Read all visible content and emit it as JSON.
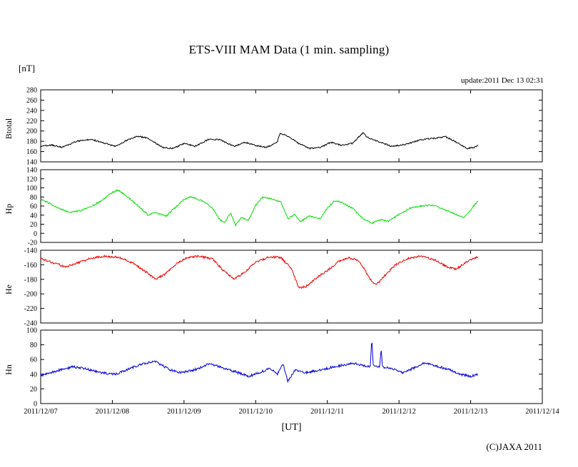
{
  "chart_data": {
    "type": "line",
    "title": "ETS-VIII MAM Data (1 min. sampling)",
    "y_unit_label": "[nT]",
    "x_unit_label": "[UT]",
    "update_text": "update:2011 Dec 13 02:31",
    "copyright": "(C)JAXA 2011",
    "x_ticks": [
      "2011/12/07",
      "2011/12/08",
      "2011/12/09",
      "2011/12/10",
      "2011/12/11",
      "2011/12/12",
      "2011/12/13",
      "2011/12/14"
    ],
    "x_range_days": [
      0,
      7
    ],
    "data_end_day": 6.105,
    "sample_step_days": 0.008,
    "grid": false,
    "legend": "none",
    "panels": [
      {
        "name": "Btotal",
        "color": "#000000",
        "ylim": [
          140,
          280
        ],
        "yticks": [
          280,
          260,
          240,
          220,
          200,
          180,
          160,
          140
        ],
        "noise": 1.3,
        "keypoints": [
          [
            0,
            170
          ],
          [
            0.15,
            173
          ],
          [
            0.3,
            168
          ],
          [
            0.5,
            180
          ],
          [
            0.7,
            184
          ],
          [
            0.9,
            176
          ],
          [
            1.05,
            170
          ],
          [
            1.2,
            182
          ],
          [
            1.35,
            190
          ],
          [
            1.5,
            186
          ],
          [
            1.7,
            168
          ],
          [
            1.85,
            166
          ],
          [
            2.0,
            176
          ],
          [
            2.15,
            170
          ],
          [
            2.35,
            184
          ],
          [
            2.5,
            183
          ],
          [
            2.7,
            170
          ],
          [
            2.85,
            178
          ],
          [
            3.0,
            172
          ],
          [
            3.15,
            168
          ],
          [
            3.3,
            178
          ],
          [
            3.34,
            196
          ],
          [
            3.45,
            190
          ],
          [
            3.6,
            176
          ],
          [
            3.75,
            166
          ],
          [
            3.9,
            168
          ],
          [
            4.05,
            178
          ],
          [
            4.2,
            172
          ],
          [
            4.35,
            176
          ],
          [
            4.5,
            197
          ],
          [
            4.55,
            188
          ],
          [
            4.7,
            180
          ],
          [
            4.9,
            170
          ],
          [
            5.1,
            174
          ],
          [
            5.3,
            183
          ],
          [
            5.5,
            186
          ],
          [
            5.65,
            189
          ],
          [
            5.8,
            178
          ],
          [
            5.95,
            166
          ],
          [
            6.05,
            168
          ],
          [
            6.105,
            172
          ]
        ]
      },
      {
        "name": "Hp",
        "color": "#00dd00",
        "ylim": [
          -20,
          140
        ],
        "yticks": [
          140,
          120,
          100,
          80,
          60,
          40,
          20,
          0,
          -20
        ],
        "noise": 1.6,
        "keypoints": [
          [
            0,
            75
          ],
          [
            0.1,
            68
          ],
          [
            0.25,
            55
          ],
          [
            0.4,
            46
          ],
          [
            0.55,
            50
          ],
          [
            0.7,
            58
          ],
          [
            0.85,
            72
          ],
          [
            1.0,
            90
          ],
          [
            1.08,
            95
          ],
          [
            1.2,
            82
          ],
          [
            1.35,
            62
          ],
          [
            1.5,
            40
          ],
          [
            1.6,
            46
          ],
          [
            1.75,
            38
          ],
          [
            1.9,
            60
          ],
          [
            2.0,
            75
          ],
          [
            2.1,
            80
          ],
          [
            2.25,
            72
          ],
          [
            2.4,
            55
          ],
          [
            2.5,
            30
          ],
          [
            2.57,
            24
          ],
          [
            2.65,
            45
          ],
          [
            2.72,
            18
          ],
          [
            2.8,
            35
          ],
          [
            2.9,
            28
          ],
          [
            3.0,
            62
          ],
          [
            3.1,
            80
          ],
          [
            3.2,
            76
          ],
          [
            3.35,
            70
          ],
          [
            3.45,
            32
          ],
          [
            3.55,
            42
          ],
          [
            3.62,
            25
          ],
          [
            3.75,
            38
          ],
          [
            3.9,
            32
          ],
          [
            4.0,
            55
          ],
          [
            4.1,
            72
          ],
          [
            4.2,
            68
          ],
          [
            4.35,
            55
          ],
          [
            4.5,
            32
          ],
          [
            4.62,
            22
          ],
          [
            4.75,
            30
          ],
          [
            4.85,
            26
          ],
          [
            5.0,
            42
          ],
          [
            5.15,
            55
          ],
          [
            5.3,
            60
          ],
          [
            5.45,
            62
          ],
          [
            5.6,
            55
          ],
          [
            5.75,
            45
          ],
          [
            5.9,
            34
          ],
          [
            6.0,
            52
          ],
          [
            6.105,
            72
          ]
        ]
      },
      {
        "name": "He",
        "color": "#ee0000",
        "ylim": [
          -240,
          -140
        ],
        "yticks": [
          -140,
          -160,
          -180,
          -200,
          -220,
          -240
        ],
        "noise": 1.4,
        "keypoints": [
          [
            0,
            -151
          ],
          [
            0.2,
            -158
          ],
          [
            0.35,
            -163
          ],
          [
            0.5,
            -158
          ],
          [
            0.7,
            -151
          ],
          [
            0.9,
            -148
          ],
          [
            1.1,
            -150
          ],
          [
            1.3,
            -158
          ],
          [
            1.5,
            -172
          ],
          [
            1.6,
            -180
          ],
          [
            1.75,
            -172
          ],
          [
            1.9,
            -158
          ],
          [
            2.05,
            -150
          ],
          [
            2.2,
            -148
          ],
          [
            2.4,
            -152
          ],
          [
            2.55,
            -168
          ],
          [
            2.7,
            -180
          ],
          [
            2.85,
            -170
          ],
          [
            3.0,
            -156
          ],
          [
            3.2,
            -149
          ],
          [
            3.35,
            -150
          ],
          [
            3.5,
            -165
          ],
          [
            3.6,
            -192
          ],
          [
            3.7,
            -190
          ],
          [
            3.85,
            -178
          ],
          [
            4.0,
            -168
          ],
          [
            4.15,
            -156
          ],
          [
            4.3,
            -150
          ],
          [
            4.45,
            -155
          ],
          [
            4.6,
            -180
          ],
          [
            4.68,
            -188
          ],
          [
            4.8,
            -175
          ],
          [
            4.95,
            -160
          ],
          [
            5.1,
            -152
          ],
          [
            5.3,
            -148
          ],
          [
            5.5,
            -153
          ],
          [
            5.65,
            -162
          ],
          [
            5.8,
            -166
          ],
          [
            5.95,
            -155
          ],
          [
            6.105,
            -149
          ]
        ]
      },
      {
        "name": "Hn",
        "color": "#0000dd",
        "ylim": [
          0,
          100
        ],
        "yticks": [
          100,
          80,
          60,
          40,
          20,
          0
        ],
        "noise": 1.6,
        "keypoints": [
          [
            0,
            38
          ],
          [
            0.2,
            44
          ],
          [
            0.45,
            50
          ],
          [
            0.65,
            47
          ],
          [
            0.85,
            42
          ],
          [
            1.05,
            40
          ],
          [
            1.25,
            48
          ],
          [
            1.45,
            55
          ],
          [
            1.6,
            57
          ],
          [
            1.8,
            46
          ],
          [
            1.95,
            42
          ],
          [
            2.15,
            46
          ],
          [
            2.35,
            54
          ],
          [
            2.5,
            50
          ],
          [
            2.7,
            44
          ],
          [
            2.9,
            37
          ],
          [
            3.05,
            42
          ],
          [
            3.2,
            48
          ],
          [
            3.3,
            40
          ],
          [
            3.38,
            55
          ],
          [
            3.45,
            30
          ],
          [
            3.55,
            46
          ],
          [
            3.7,
            42
          ],
          [
            3.85,
            45
          ],
          [
            4.0,
            48
          ],
          [
            4.2,
            52
          ],
          [
            4.35,
            55
          ],
          [
            4.5,
            52
          ],
          [
            4.6,
            50
          ],
          [
            4.62,
            88
          ],
          [
            4.64,
            52
          ],
          [
            4.73,
            50
          ],
          [
            4.75,
            75
          ],
          [
            4.77,
            50
          ],
          [
            4.9,
            48
          ],
          [
            5.05,
            42
          ],
          [
            5.2,
            48
          ],
          [
            5.35,
            55
          ],
          [
            5.5,
            52
          ],
          [
            5.7,
            46
          ],
          [
            5.85,
            40
          ],
          [
            6.0,
            37
          ],
          [
            6.105,
            40
          ]
        ]
      }
    ]
  }
}
